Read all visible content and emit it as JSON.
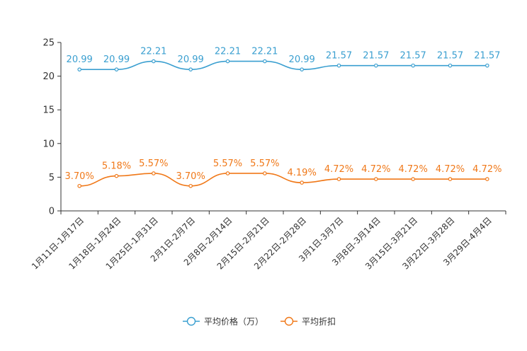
{
  "chart_data": {
    "type": "line",
    "title": "",
    "xlabel": "",
    "ylabel": "",
    "ylim": [
      0,
      25
    ],
    "yticks": [
      0,
      5,
      10,
      15,
      20,
      25
    ],
    "categories": [
      "1月11日-1月17日",
      "1月18日-1月24日",
      "1月25日-1月31日",
      "2月1日-2月7日",
      "2月8日-2月14日",
      "2月15日-2月21日",
      "2月22日-2月28日",
      "3月1日-3月7日",
      "3月8日-3月14日",
      "3月15日-3月21日",
      "3月22日-3月28日",
      "3月29日-4月4日"
    ],
    "series": [
      {
        "name": "平均价格（万）",
        "color": "#3a9fd0",
        "values": [
          20.99,
          20.99,
          22.21,
          20.99,
          22.21,
          22.21,
          20.99,
          21.57,
          21.57,
          21.57,
          21.57,
          21.57
        ],
        "labels": [
          "20.99",
          "20.99",
          "22.21",
          "20.99",
          "22.21",
          "22.21",
          "20.99",
          "21.57",
          "21.57",
          "21.57",
          "21.57",
          "21.57"
        ]
      },
      {
        "name": "平均折扣",
        "color": "#f07818",
        "values": [
          3.7,
          5.18,
          5.57,
          3.7,
          5.57,
          5.57,
          4.19,
          4.72,
          4.72,
          4.72,
          4.72,
          4.72
        ],
        "labels": [
          "3.70%",
          "5.18%",
          "5.57%",
          "3.70%",
          "5.57%",
          "5.57%",
          "4.19%",
          "4.72%",
          "4.72%",
          "4.72%",
          "4.72%",
          "4.72%"
        ]
      }
    ],
    "legend": {
      "position": "bottom-center",
      "items": [
        "平均价格（万）",
        "平均折扣"
      ]
    },
    "grid": false
  }
}
